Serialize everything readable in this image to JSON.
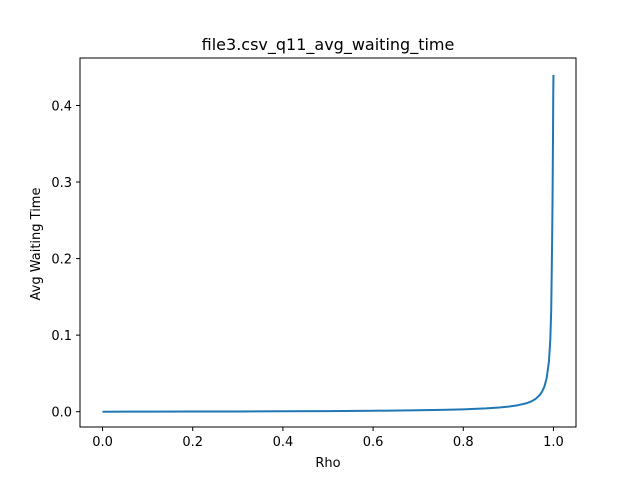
{
  "chart_data": {
    "type": "line",
    "title": "file3.csv_q11_avg_waiting_time",
    "xlabel": "Rho",
    "ylabel": "Avg Waiting Time",
    "xlim": [
      -0.05,
      1.05
    ],
    "ylim": [
      -0.02,
      0.462
    ],
    "xticks": [
      0.0,
      0.2,
      0.4,
      0.6,
      0.8,
      1.0
    ],
    "xtick_labels": [
      "0.0",
      "0.2",
      "0.4",
      "0.6",
      "0.8",
      "1.0"
    ],
    "yticks": [
      0.0,
      0.1,
      0.2,
      0.3,
      0.4
    ],
    "ytick_labels": [
      "0.0",
      "0.1",
      "0.2",
      "0.3",
      "0.4"
    ],
    "grid": false,
    "series": [
      {
        "color": "#1f77b4",
        "x": [
          0.0,
          0.1,
          0.2,
          0.3,
          0.4,
          0.5,
          0.6,
          0.7,
          0.75,
          0.8,
          0.85,
          0.88,
          0.9,
          0.92,
          0.94,
          0.95,
          0.96,
          0.97,
          0.975,
          0.98,
          0.985,
          0.99,
          0.993,
          0.995,
          0.997,
          0.998,
          0.999,
          0.9995,
          1.0
        ],
        "y": [
          0.0,
          0.0001,
          0.0002,
          0.0003,
          0.0005,
          0.0008,
          0.0012,
          0.0018,
          0.0023,
          0.0031,
          0.0043,
          0.0055,
          0.0066,
          0.0083,
          0.011,
          0.0132,
          0.0165,
          0.022,
          0.0264,
          0.033,
          0.044,
          0.066,
          0.094,
          0.132,
          0.22,
          0.28,
          0.36,
          0.41,
          0.44
        ]
      }
    ]
  }
}
